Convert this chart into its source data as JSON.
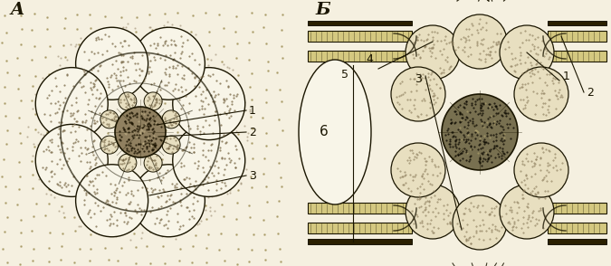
{
  "bg_color": "#f5f0e0",
  "dot_color": "#9a8a50",
  "line_color": "#1a1500",
  "fill_light": "#e8dfc0",
  "fill_stipple": "#b0a070",
  "fill_dark": "#706040",
  "fill_very_dark": "#302810",
  "membrane_fill": "#d4c880",
  "label_A": "A",
  "label_B": "Б",
  "white": "#f8f5e8",
  "fig_width": 6.75,
  "fig_height": 2.94,
  "dpi": 100
}
